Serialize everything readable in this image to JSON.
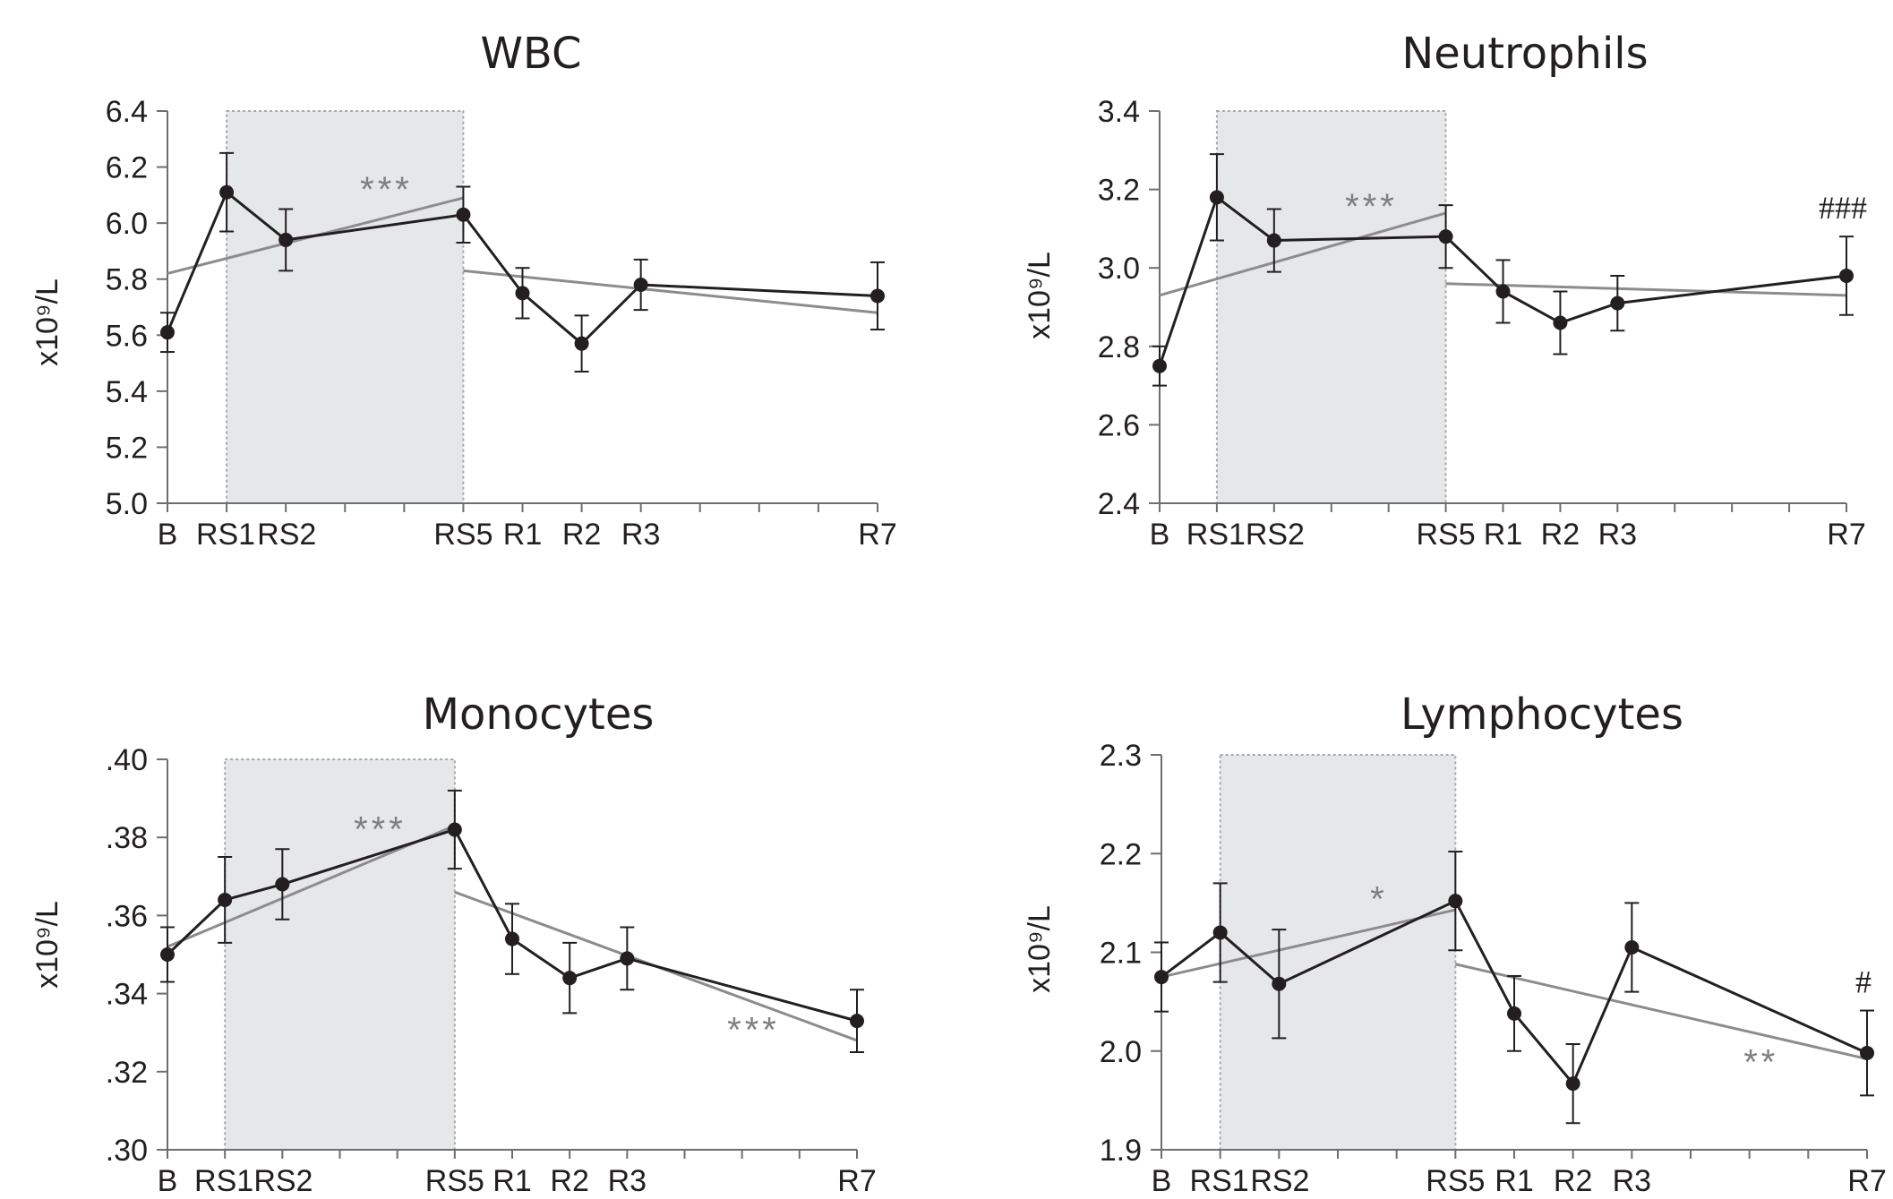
{
  "chart_data": [
    {
      "type": "line",
      "title": "WBC",
      "ylabel": "x10⁹/L",
      "ylim": [
        5.0,
        6.4
      ],
      "yticks": [
        "5.0",
        "5.2",
        "5.4",
        "5.6",
        "5.8",
        "6.0",
        "6.2",
        "6.4"
      ],
      "tick_labels": [
        "B",
        "RS1",
        "RS2",
        "RS5",
        "R1",
        "R2",
        "R3",
        "R7"
      ],
      "x": [
        0,
        1,
        2,
        5,
        6,
        7,
        8,
        12
      ],
      "values": [
        5.61,
        6.11,
        5.94,
        6.03,
        5.75,
        5.57,
        5.78,
        5.74
      ],
      "errors": [
        0.07,
        0.14,
        0.11,
        0.1,
        0.09,
        0.1,
        0.09,
        0.12
      ],
      "shaded_range": [
        1,
        5
      ],
      "trends": [
        {
          "x": [
            0,
            5
          ],
          "y": [
            5.82,
            6.09
          ],
          "label": "***"
        },
        {
          "x": [
            5,
            12
          ],
          "y": [
            5.83,
            5.68
          ],
          "label": ""
        }
      ],
      "annotation": ""
    },
    {
      "type": "line",
      "title": "Neutrophils",
      "ylabel": "x10⁹/L",
      "ylim": [
        2.4,
        3.4
      ],
      "yticks": [
        "2.4",
        "2.6",
        "2.8",
        "3.0",
        "3.2",
        "3.4"
      ],
      "tick_labels": [
        "B",
        "RS1",
        "RS2",
        "RS5",
        "R1",
        "R2",
        "R3",
        "R7"
      ],
      "x": [
        0,
        1,
        2,
        5,
        6,
        7,
        8,
        12
      ],
      "values": [
        2.75,
        3.18,
        3.07,
        3.08,
        2.94,
        2.86,
        2.91,
        2.98
      ],
      "errors": [
        0.05,
        0.11,
        0.08,
        0.08,
        0.08,
        0.08,
        0.07,
        0.1
      ],
      "shaded_range": [
        1,
        5
      ],
      "trends": [
        {
          "x": [
            0,
            5
          ],
          "y": [
            2.93,
            3.14
          ],
          "label": "***"
        },
        {
          "x": [
            5,
            12
          ],
          "y": [
            2.96,
            2.93
          ],
          "label": ""
        }
      ],
      "annotation": "###"
    },
    {
      "type": "line",
      "title": "Monocytes",
      "ylabel": "x10⁹/L",
      "ylim": [
        0.3,
        0.4
      ],
      "yticks": [
        ".30",
        ".32",
        ".34",
        ".36",
        ".38",
        ".40"
      ],
      "tick_labels": [
        "B",
        "RS1",
        "RS2",
        "RS5",
        "R1",
        "R2",
        "R3",
        "R7"
      ],
      "x": [
        0,
        1,
        2,
        5,
        6,
        7,
        8,
        12
      ],
      "values": [
        0.35,
        0.364,
        0.368,
        0.382,
        0.354,
        0.344,
        0.349,
        0.333
      ],
      "errors": [
        0.007,
        0.011,
        0.009,
        0.01,
        0.009,
        0.009,
        0.008,
        0.008
      ],
      "shaded_range": [
        1,
        5
      ],
      "trends": [
        {
          "x": [
            0,
            5
          ],
          "y": [
            0.352,
            0.383
          ],
          "label": "***"
        },
        {
          "x": [
            5,
            12
          ],
          "y": [
            0.366,
            0.328
          ],
          "label": "***"
        }
      ],
      "annotation": ""
    },
    {
      "type": "line",
      "title": "Lymphocytes",
      "ylabel": "x10⁹/L",
      "ylim": [
        1.9,
        2.3
      ],
      "yticks": [
        "1.9",
        "2.0",
        "2.1",
        "2.2",
        "2.3"
      ],
      "tick_labels": [
        "B",
        "RS1",
        "RS2",
        "RS5",
        "R1",
        "R2",
        "R3",
        "R7"
      ],
      "x": [
        0,
        1,
        2,
        5,
        6,
        7,
        8,
        12
      ],
      "values": [
        2.075,
        2.12,
        2.068,
        2.152,
        2.038,
        1.967,
        2.105,
        1.998
      ],
      "errors": [
        0.035,
        0.05,
        0.055,
        0.05,
        0.038,
        0.04,
        0.045,
        0.043
      ],
      "shaded_range": [
        1,
        5
      ],
      "trends": [
        {
          "x": [
            0,
            5
          ],
          "y": [
            2.075,
            2.143
          ],
          "label": "*"
        },
        {
          "x": [
            5,
            12
          ],
          "y": [
            2.088,
            1.992
          ],
          "label": "**"
        }
      ],
      "annotation": "#"
    }
  ]
}
